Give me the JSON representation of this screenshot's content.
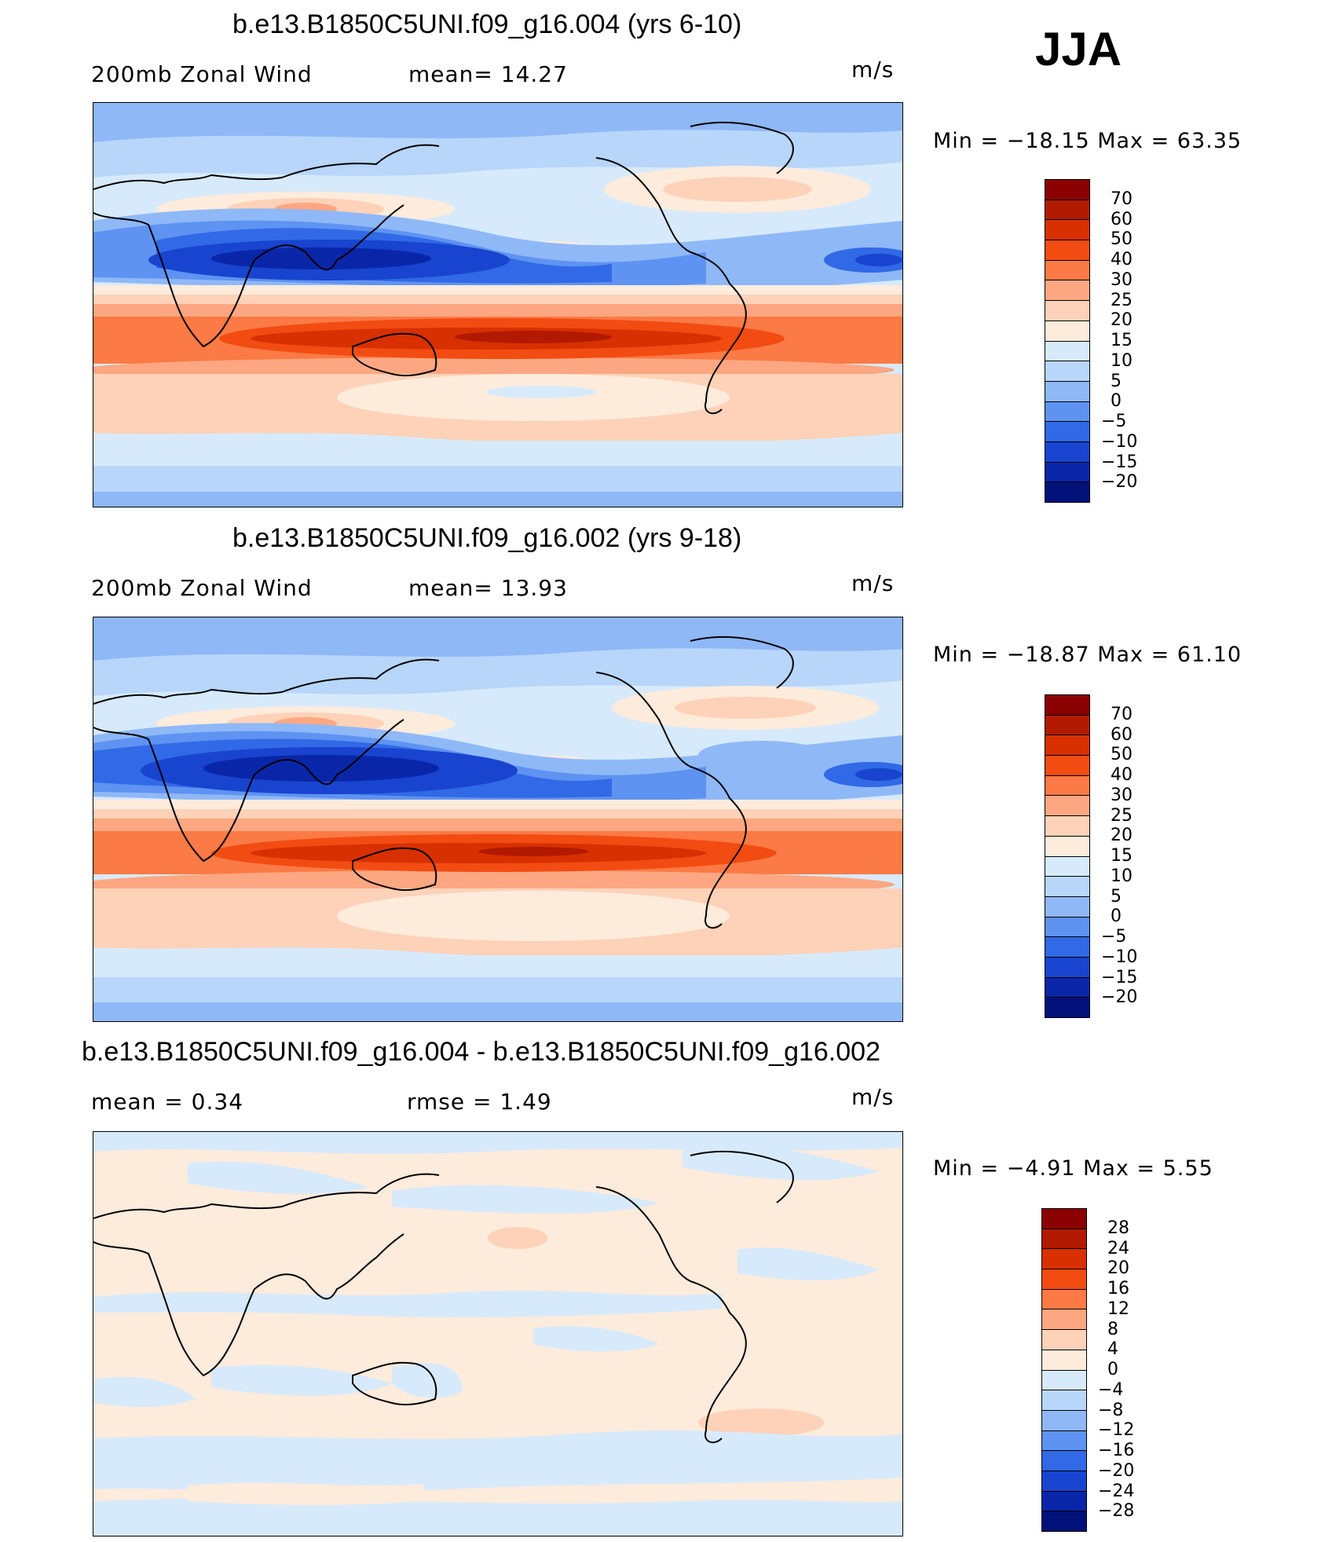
{
  "season": "JJA",
  "units": "m/s",
  "panels": [
    {
      "title": "b.e13.B1850C5UNI.f09_g16.004 (yrs 6-10)",
      "left_label": "200mb Zonal Wind",
      "right_label": "mean=   14.27",
      "minmax": "Min  =  −18.15  Max  =     63.35",
      "levels": [
        "70",
        "60",
        "50",
        "40",
        "30",
        "25",
        "20",
        "15",
        "10",
        "5",
        "0",
        "−5",
        "−10",
        "−15",
        "−20"
      ],
      "colors": [
        "#8b0000",
        "#b21a00",
        "#d83000",
        "#f24c12",
        "#fb7a45",
        "#fca782",
        "#fdd2b8",
        "#fdebdc",
        "#d7eafb",
        "#b8d6fa",
        "#8fb8f7",
        "#5e93f2",
        "#3169e6",
        "#1844cf",
        "#0a26a8",
        "#00127a"
      ]
    },
    {
      "title": "b.e13.B1850C5UNI.f09_g16.002 (yrs 9-18)",
      "left_label": "200mb Zonal Wind",
      "right_label": "mean=   13.93",
      "minmax": "Min  =  −18.87  Max  =     61.10",
      "levels": [
        "70",
        "60",
        "50",
        "40",
        "30",
        "25",
        "20",
        "15",
        "10",
        "5",
        "0",
        "−5",
        "−10",
        "−15",
        "−20"
      ],
      "colors": [
        "#8b0000",
        "#b21a00",
        "#d83000",
        "#f24c12",
        "#fb7a45",
        "#fca782",
        "#fdd2b8",
        "#fdebdc",
        "#d7eafb",
        "#b8d6fa",
        "#8fb8f7",
        "#5e93f2",
        "#3169e6",
        "#1844cf",
        "#0a26a8",
        "#00127a"
      ]
    },
    {
      "title": "b.e13.B1850C5UNI.f09_g16.004 - b.e13.B1850C5UNI.f09_g16.002",
      "left_label": "mean  =     0.34",
      "right_label": "rmse  =     1.49",
      "minmax": "Min  =    −4.91  Max  =      5.55",
      "levels": [
        "28",
        "24",
        "20",
        "16",
        "12",
        "8",
        "4",
        "0",
        "−4",
        "−8",
        "−12",
        "−16",
        "−20",
        "−24",
        "−28"
      ],
      "colors": [
        "#8b0000",
        "#b21a00",
        "#d83000",
        "#f24c12",
        "#fb7a45",
        "#fca782",
        "#fdd2b8",
        "#fdebdc",
        "#d7eafb",
        "#b8d6fa",
        "#8fb8f7",
        "#5e93f2",
        "#3169e6",
        "#1844cf",
        "#0a26a8",
        "#00127a"
      ]
    }
  ]
}
